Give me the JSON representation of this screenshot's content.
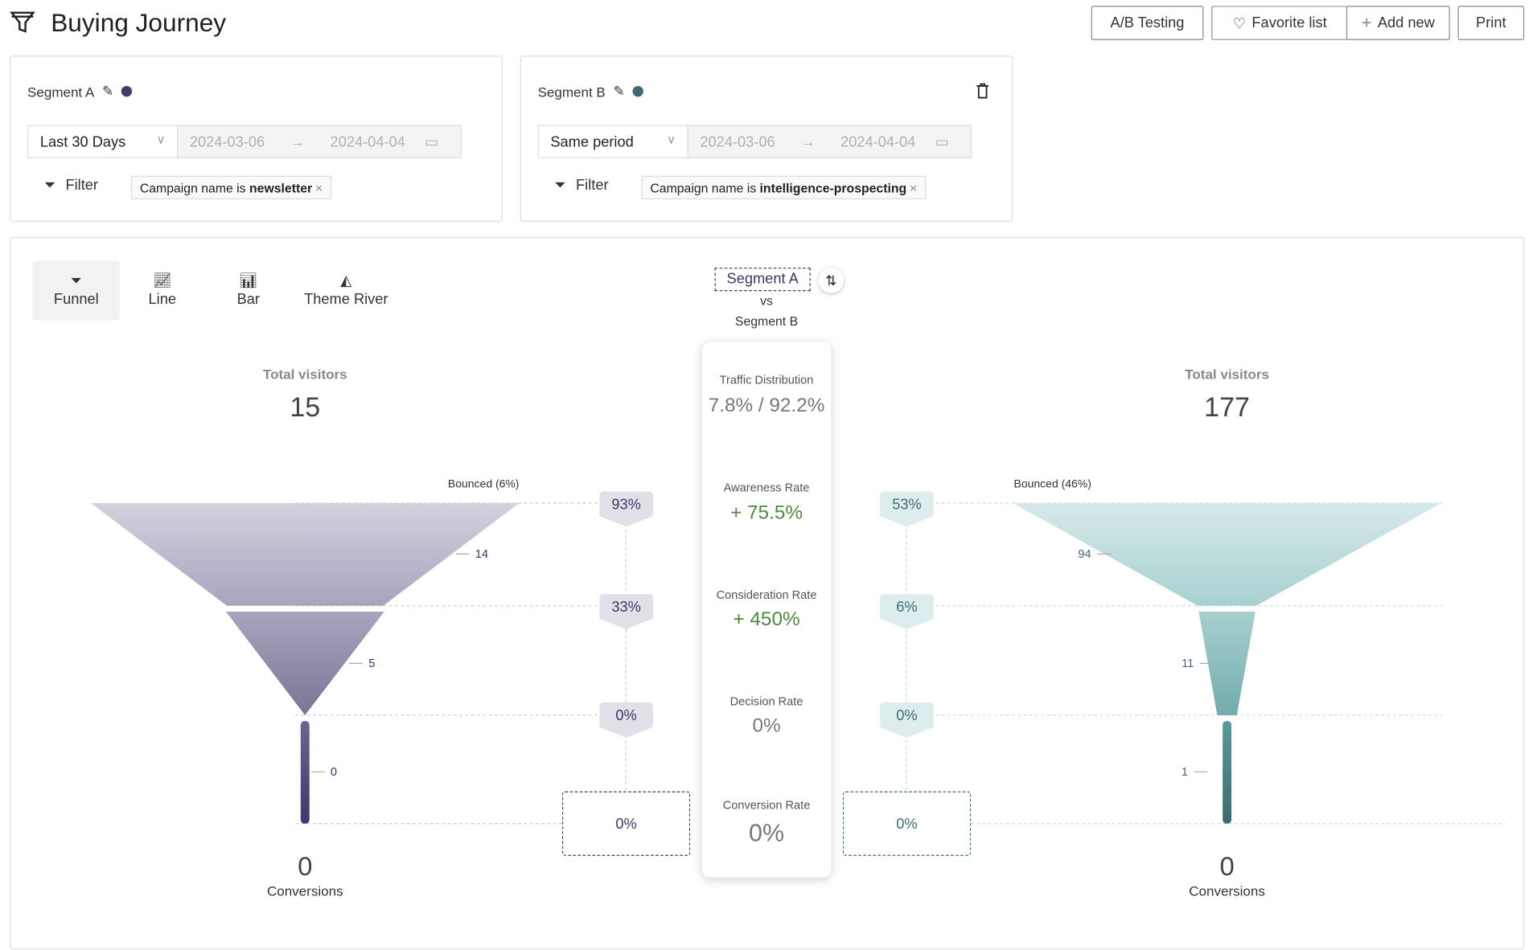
{
  "header": {
    "title": "Buying Journey",
    "icon": "funnel-icon",
    "buttons": {
      "ab": "A/B Testing",
      "favorite": "Favorite list",
      "add": "Add new",
      "print": "Print"
    }
  },
  "segments": [
    {
      "name": "Segment A",
      "color": "#3f3d6b",
      "period": "Last 30 Days",
      "start": "2024-03-06",
      "end": "2024-04-04",
      "filter_label": "Filter",
      "filter_prefix": "Campaign name is",
      "filter_value": "newsletter"
    },
    {
      "name": "Segment B",
      "color": "#3e6b73",
      "period": "Same period",
      "start": "2024-03-06",
      "end": "2024-04-04",
      "filter_label": "Filter",
      "filter_prefix": "Campaign name is",
      "filter_value": "intelligence-prospecting"
    }
  ],
  "tabs": [
    {
      "label": "Funnel",
      "active": true
    },
    {
      "label": "Line"
    },
    {
      "label": "Bar"
    },
    {
      "label": "Theme River"
    }
  ],
  "compare": {
    "primary": "Segment A",
    "vs": "vs",
    "secondary": "Segment B"
  },
  "metrics": [
    {
      "label": "Traffic Distribution",
      "value": "7.8% / 92.2%"
    },
    {
      "label": "Awareness Rate",
      "value": "+ 75.5%",
      "positive": true
    },
    {
      "label": "Consideration Rate",
      "value": "+ 450%",
      "positive": true
    },
    {
      "label": "Decision Rate",
      "value": "0%"
    },
    {
      "label": "Conversion Rate",
      "value": "0%"
    }
  ],
  "funnels": [
    {
      "total_label": "Total visitors",
      "total": "15",
      "bounced": "Bounced (6%)",
      "stages": [
        14,
        5,
        0
      ],
      "rates": [
        "93%",
        "33%",
        "0%"
      ],
      "conversion_rate": "0%",
      "conversions": "0",
      "conversions_label": "Conversions",
      "colors": [
        "#d4d1de",
        "#a9a4be",
        "#7b7596",
        "#6b6590",
        "#3d3868"
      ],
      "badge_bg": "#e1e0e8",
      "text": "#3a3766"
    },
    {
      "total_label": "Total visitors",
      "total": "177",
      "bounced": "Bounced (46%)",
      "stages": [
        94,
        11,
        1
      ],
      "rates": [
        "53%",
        "6%",
        "0%"
      ],
      "conversion_rate": "0%",
      "conversions": "0",
      "conversions_label": "Conversions",
      "colors": [
        "#d6e9e9",
        "#a8d0d0",
        "#72abab",
        "#5a9a9a",
        "#3e6b70"
      ],
      "badge_bg": "#ddeced",
      "text": "#3e6b73"
    }
  ]
}
